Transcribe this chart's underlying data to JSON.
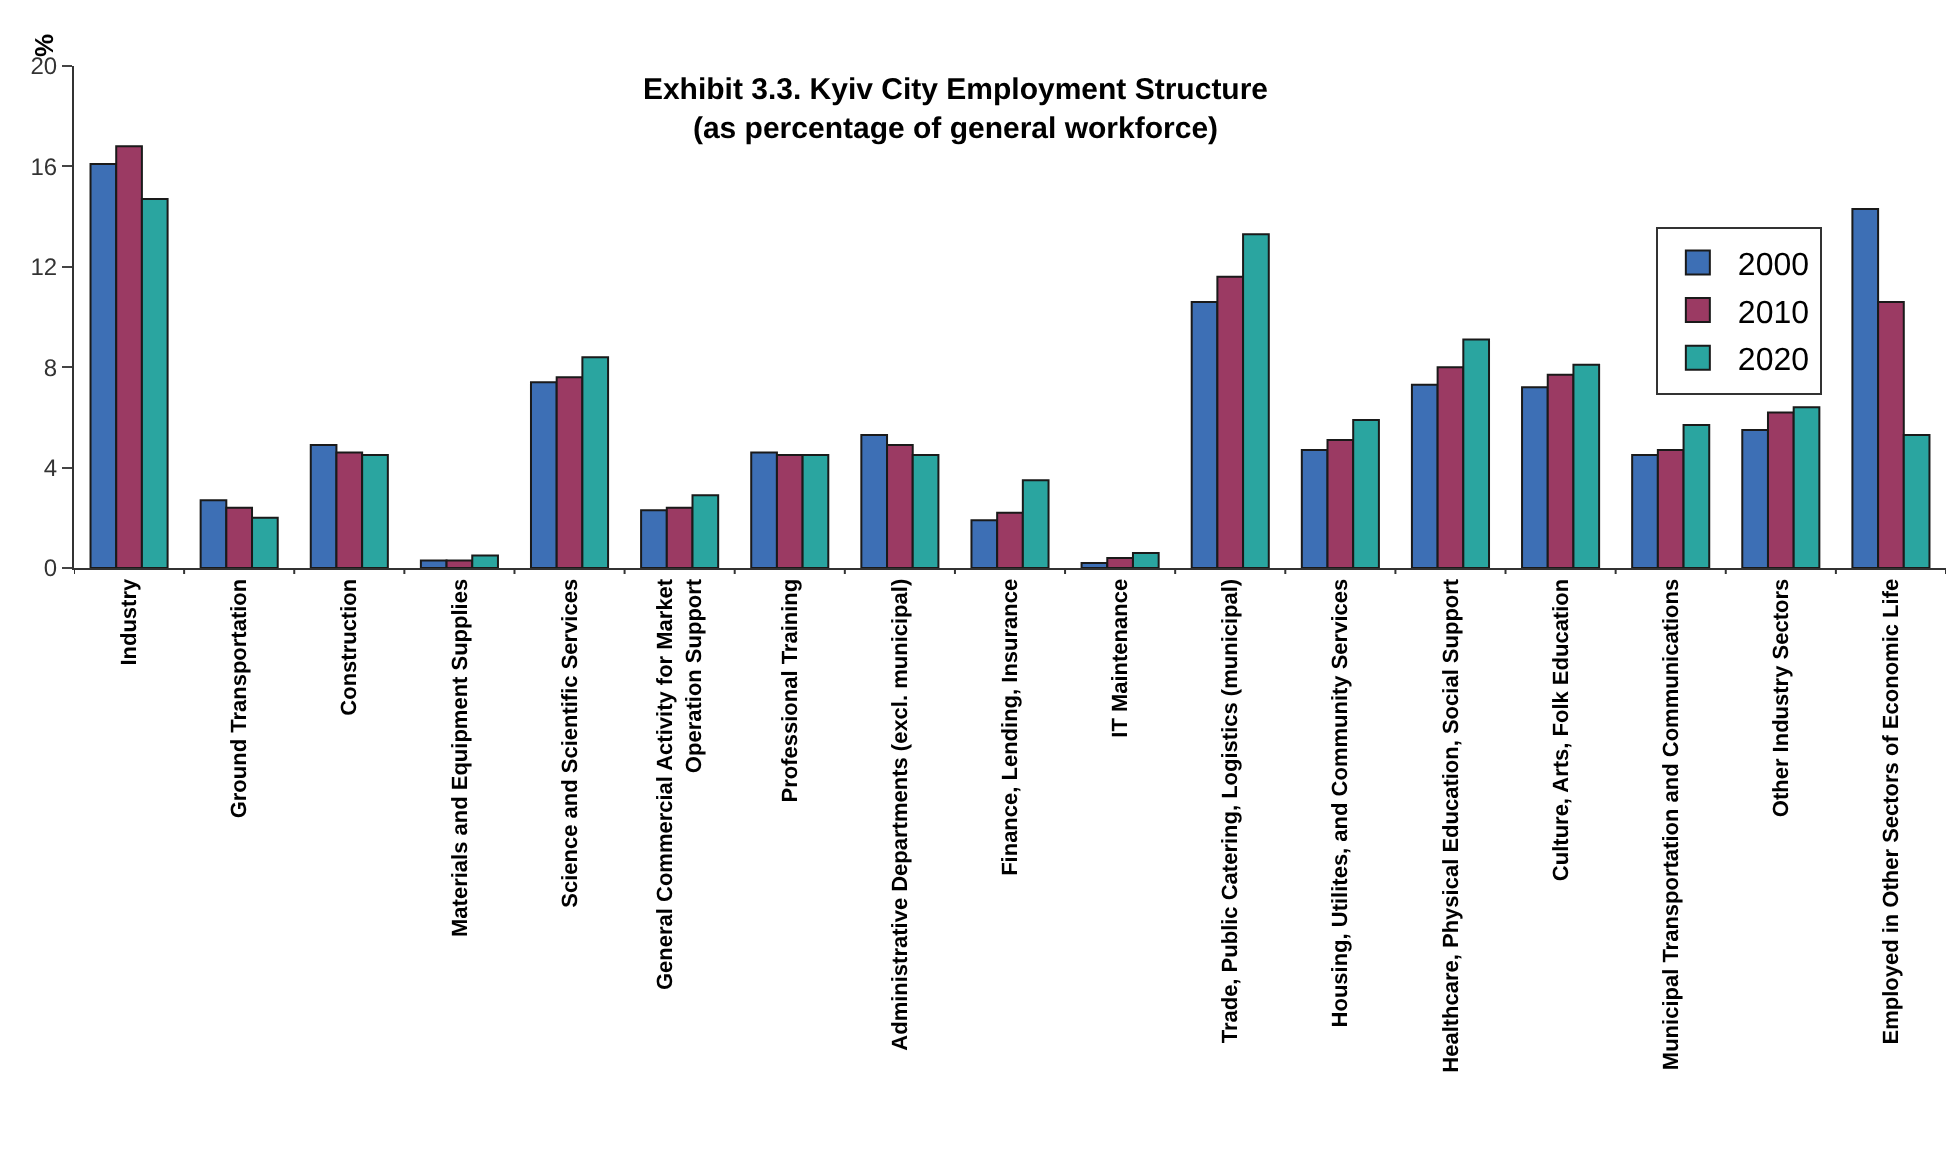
{
  "chart_data": {
    "type": "bar",
    "title": "Exhibit 3.3. Kyiv City Employment Structure\n(as percentage of general workforce)",
    "ylabel": "%",
    "categories": [
      "Industry",
      "Ground Transportation",
      "Construction",
      "Materials and Equipment Supplies",
      "Science and Scientific Services",
      "General Commercial Activity for Market\nOperation Support",
      "Professional Training",
      "Administrative Departments (excl. municipal)",
      "Finance, Lending, Insurance",
      "IT Maintenance",
      "Trade, Public Catering, Logistics (municipal)",
      "Housing, Utilites, and Community Services",
      "Healthcare, Physical Education, Social Support",
      "Culture, Arts, Folk Education",
      "Municipal Transportation and Communications",
      "Other Industry Sectors",
      "Employed in Other Sectors of Economic Life"
    ],
    "series": [
      {
        "name": "2000",
        "color": "#3d6fb5",
        "values": [
          16.1,
          2.7,
          4.9,
          0.3,
          7.4,
          2.3,
          4.6,
          5.3,
          1.9,
          0.2,
          10.6,
          4.7,
          7.3,
          7.2,
          4.5,
          5.5,
          14.3
        ]
      },
      {
        "name": "2010",
        "color": "#9b3a63",
        "values": [
          16.8,
          2.4,
          4.6,
          0.3,
          7.6,
          2.4,
          4.5,
          4.9,
          2.2,
          0.4,
          11.6,
          5.1,
          8.0,
          7.7,
          4.7,
          6.2,
          10.6
        ]
      },
      {
        "name": "2020",
        "color": "#2aa5a0",
        "values": [
          14.7,
          2.0,
          4.5,
          0.5,
          8.4,
          2.9,
          4.5,
          4.5,
          3.5,
          0.6,
          13.3,
          5.9,
          9.1,
          8.1,
          5.7,
          6.4,
          5.3
        ]
      }
    ],
    "ylim": [
      0,
      20
    ],
    "yticks": [
      0,
      4,
      8,
      12,
      16,
      20
    ],
    "grid": false,
    "legend": "top right"
  }
}
